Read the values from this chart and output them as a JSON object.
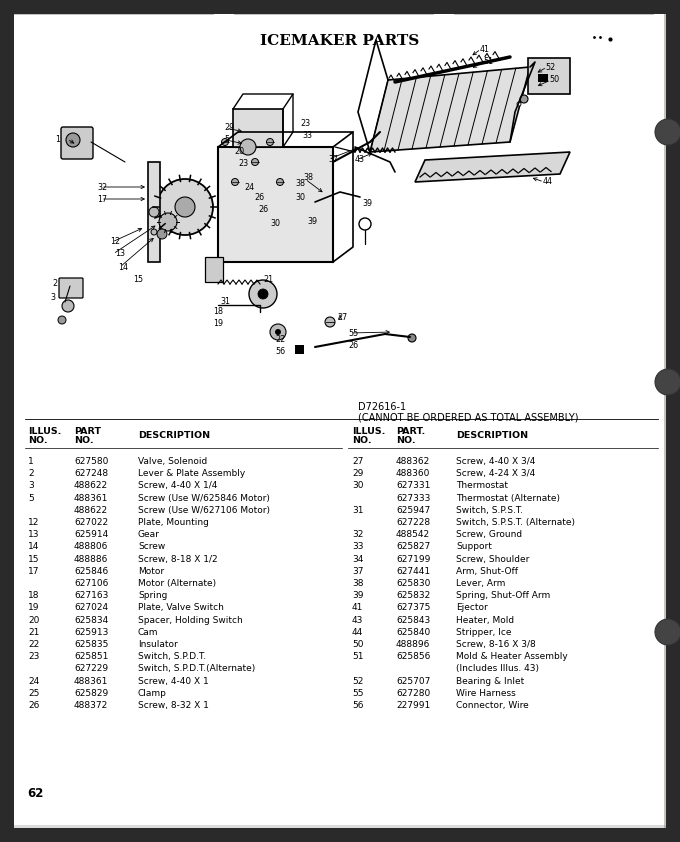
{
  "title": "ICEMAKER PARTS",
  "diagram_note_line1": "D72616-1",
  "diagram_note_line2": "(CANNOT BE ORDERED AS TOTAL ASSEMBLY)",
  "page_number": "62",
  "bg_color": "#c8c3bc",
  "page_color": "#ffffff",
  "left_table_rows": [
    [
      "1",
      "627580",
      "Valve, Solenoid"
    ],
    [
      "2",
      "627248",
      "Lever & Plate Assembly"
    ],
    [
      "3",
      "488622",
      "Screw, 4-40 X 1/4"
    ],
    [
      "5",
      "488361",
      "Screw (Use W/625846 Motor)"
    ],
    [
      "",
      "488622",
      "Screw (Use W/627106 Motor)"
    ],
    [
      "12",
      "627022",
      "Plate, Mounting"
    ],
    [
      "13",
      "625914",
      "Gear"
    ],
    [
      "14",
      "488806",
      "Screw"
    ],
    [
      "15",
      "488886",
      "Screw, 8-18 X 1/2"
    ],
    [
      "17",
      "625846",
      "Motor"
    ],
    [
      "",
      "627106",
      "Motor (Alternate)"
    ],
    [
      "18",
      "627163",
      "Spring"
    ],
    [
      "19",
      "627024",
      "Plate, Valve Switch"
    ],
    [
      "20",
      "625834",
      "Spacer, Holding Switch"
    ],
    [
      "21",
      "625913",
      "Cam"
    ],
    [
      "22",
      "625835",
      "Insulator"
    ],
    [
      "23",
      "625851",
      "Switch, S.P.D.T."
    ],
    [
      "",
      "627229",
      "Switch, S.P.D.T.(Alternate)"
    ],
    [
      "24",
      "488361",
      "Screw, 4-40 X 1"
    ],
    [
      "25",
      "625829",
      "Clamp"
    ],
    [
      "26",
      "488372",
      "Screw, 8-32 X 1"
    ]
  ],
  "right_table_rows": [
    [
      "27",
      "488362",
      "Screw, 4-40 X 3/4"
    ],
    [
      "29",
      "488360",
      "Screw, 4-24 X 3/4"
    ],
    [
      "30",
      "627331",
      "Thermostat"
    ],
    [
      "",
      "627333",
      "Thermostat (Alternate)"
    ],
    [
      "31",
      "625947",
      "Switch, S.P.S.T."
    ],
    [
      "",
      "627228",
      "Switch, S.P.S.T. (Alternate)"
    ],
    [
      "32",
      "488542",
      "Screw, Ground"
    ],
    [
      "33",
      "625827",
      "Support"
    ],
    [
      "34",
      "627199",
      "Screw, Shoulder"
    ],
    [
      "37",
      "627441",
      "Arm, Shut-Off"
    ],
    [
      "38",
      "625830",
      "Lever, Arm"
    ],
    [
      "39",
      "625832",
      "Spring, Shut-Off Arm"
    ],
    [
      "41",
      "627375",
      "Ejector"
    ],
    [
      "43",
      "625843",
      "Heater, Mold"
    ],
    [
      "44",
      "625840",
      "Stripper, Ice"
    ],
    [
      "50",
      "488896",
      "Screw, 8-16 X 3/8"
    ],
    [
      "51",
      "625856",
      "Mold & Heater Assembly"
    ],
    [
      "",
      "",
      "(Includes Illus. 43)"
    ],
    [
      "52",
      "625707",
      "Bearing & Inlet"
    ],
    [
      "55",
      "627280",
      "Wire Harness"
    ],
    [
      "56",
      "227991",
      "Connector, Wire"
    ]
  ]
}
